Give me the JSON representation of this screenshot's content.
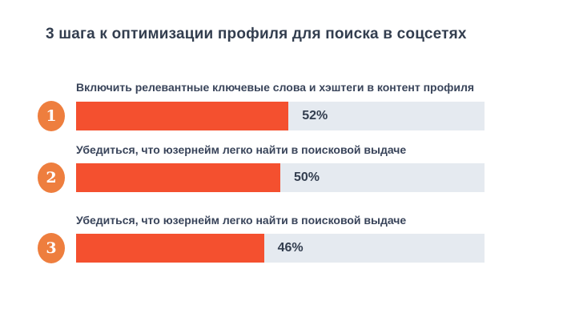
{
  "title": "3 шага к оптимизации профиля для поиска в соцсетях",
  "chart_data": {
    "type": "bar",
    "orientation": "horizontal",
    "title": "3 шага к оптимизации профиля для поиска в соцсетях",
    "categories": [
      "Включить релевантные ключевые слова и хэштеги в контент профиля",
      "Убедиться, что юзернейм легко найти в поисковой выдаче",
      "Убедиться, что юзернейм легко найти в поисковой выдаче"
    ],
    "values": [
      52,
      50,
      46
    ],
    "value_labels": [
      "52%",
      "50%",
      "46%"
    ],
    "step_numbers": [
      "1",
      "2",
      "3"
    ],
    "xlim": [
      0,
      100
    ],
    "grid": false,
    "legend": false
  },
  "colors": {
    "background": "#ffffff",
    "bar_fill": "#f4502f",
    "bar_track": "#e5eaf0",
    "step_circle": "#ee7e3e",
    "text": "#333e4f"
  }
}
